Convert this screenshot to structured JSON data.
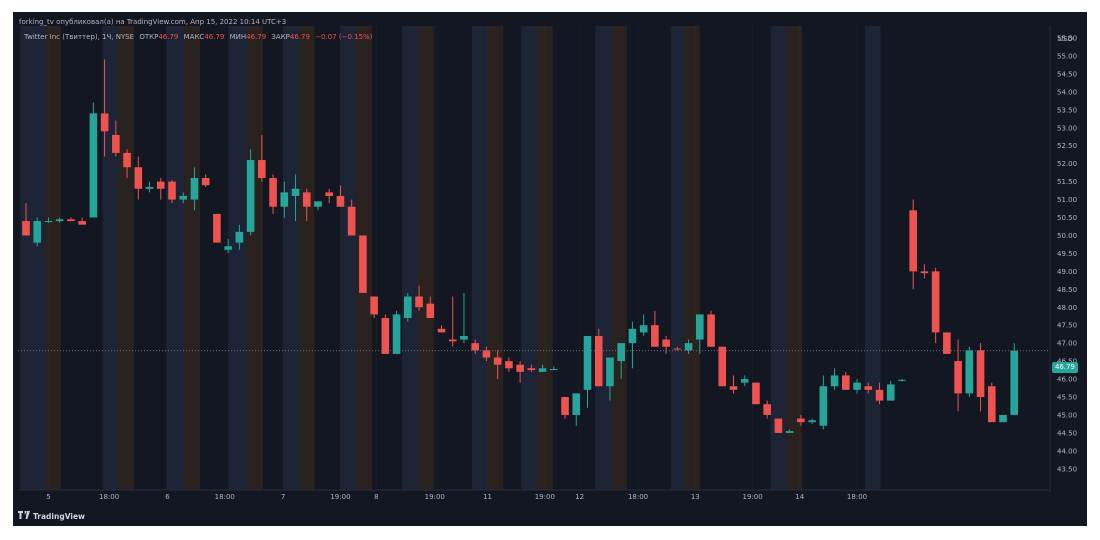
{
  "header": {
    "publish_line": "forking_tv опубликовал(а) на TradingView.com, Апр 15, 2022 10:14 UTC+3"
  },
  "symbol_bar": {
    "symbol": "Twitter Inc (Твиттер), 1Ч, NYSE",
    "open_label": "ОТКР",
    "open_value": "46.79",
    "high_label": "МАКС",
    "high_value": "46.79",
    "low_label": "МИН",
    "low_value": "46.79",
    "close_label": "ЗАКР",
    "close_value": "46.79",
    "change": "−0.07 (−0.15%)"
  },
  "footer": {
    "brand": "TradingView"
  },
  "colors": {
    "background": "#131722",
    "up": "#26a69a",
    "down": "#ef5350",
    "premarket_band": "#1c2436",
    "afterhours_band": "#2a221f",
    "text": "#b2b5be"
  },
  "chart_data": {
    "type": "candlestick",
    "currency": "USD",
    "last_price": "46.79",
    "y_ticks": [
      "43.50",
      "44.00",
      "44.50",
      "45.00",
      "45.50",
      "46.00",
      "46.50",
      "47.00",
      "47.50",
      "48.00",
      "48.50",
      "49.00",
      "49.50",
      "50.00",
      "50.50",
      "51.00",
      "51.50",
      "52.00",
      "52.50",
      "53.00",
      "53.50",
      "54.00",
      "54.50",
      "55.00",
      "55.50"
    ],
    "ylim": [
      43.25,
      56.0
    ],
    "x_ticks": [
      {
        "label": "5",
        "index": 2.0
      },
      {
        "label": "18:00",
        "index": 7.4
      },
      {
        "label": "6",
        "index": 12.6
      },
      {
        "label": "18:00",
        "index": 17.7
      },
      {
        "label": "7",
        "index": 22.9
      },
      {
        "label": "19:00",
        "index": 28.0
      },
      {
        "label": "8",
        "index": 31.2
      },
      {
        "label": "19:00",
        "index": 36.4
      },
      {
        "label": "11",
        "index": 41.1
      },
      {
        "label": "19:00",
        "index": 46.2
      },
      {
        "label": "12",
        "index": 49.3
      },
      {
        "label": "18:00",
        "index": 54.5
      },
      {
        "label": "13",
        "index": 59.6
      },
      {
        "label": "19:00",
        "index": 64.7
      },
      {
        "label": "14",
        "index": 68.9
      },
      {
        "label": "18:00",
        "index": 74.0
      }
    ],
    "session_bands": [
      {
        "kind": "pre",
        "start": 0.0,
        "end": 2.2
      },
      {
        "kind": "post",
        "start": 2.2,
        "end": 3.6
      },
      {
        "kind": "pre",
        "start": 7.3,
        "end": 8.7
      },
      {
        "kind": "post",
        "start": 8.7,
        "end": 10.1
      },
      {
        "kind": "pre",
        "start": 13.0,
        "end": 14.6
      },
      {
        "kind": "post",
        "start": 14.6,
        "end": 16.0
      },
      {
        "kind": "pre",
        "start": 18.5,
        "end": 20.2
      },
      {
        "kind": "post",
        "start": 20.2,
        "end": 21.6
      },
      {
        "kind": "pre",
        "start": 23.4,
        "end": 24.8
      },
      {
        "kind": "post",
        "start": 24.8,
        "end": 26.2
      },
      {
        "kind": "pre",
        "start": 28.5,
        "end": 29.9
      },
      {
        "kind": "post",
        "start": 29.9,
        "end": 31.3
      },
      {
        "kind": "pre",
        "start": 34.0,
        "end": 35.4
      },
      {
        "kind": "post",
        "start": 35.4,
        "end": 36.8
      },
      {
        "kind": "pre",
        "start": 40.2,
        "end": 41.6
      },
      {
        "kind": "post",
        "start": 41.6,
        "end": 43.0
      },
      {
        "kind": "pre",
        "start": 44.6,
        "end": 46.0
      },
      {
        "kind": "post",
        "start": 46.0,
        "end": 47.4
      },
      {
        "kind": "pre",
        "start": 51.2,
        "end": 52.6
      },
      {
        "kind": "post",
        "start": 52.6,
        "end": 54.0
      },
      {
        "kind": "pre",
        "start": 57.9,
        "end": 59.1
      },
      {
        "kind": "post",
        "start": 59.1,
        "end": 60.5
      },
      {
        "kind": "pre",
        "start": 66.8,
        "end": 68.2
      },
      {
        "kind": "post",
        "start": 68.2,
        "end": 69.6
      },
      {
        "kind": "pre",
        "start": 75.2,
        "end": 76.6
      }
    ],
    "candles": [
      {
        "o": 50.4,
        "h": 50.9,
        "l": 50.0,
        "c": 50.0
      },
      {
        "o": 49.8,
        "h": 50.5,
        "l": 49.7,
        "c": 50.4
      },
      {
        "o": 50.4,
        "h": 50.5,
        "l": 50.35,
        "c": 50.4
      },
      {
        "o": 50.4,
        "h": 50.5,
        "l": 50.35,
        "c": 50.45
      },
      {
        "o": 50.45,
        "h": 50.5,
        "l": 50.4,
        "c": 50.4
      },
      {
        "o": 50.4,
        "h": 50.5,
        "l": 50.3,
        "c": 50.3
      },
      {
        "o": 50.5,
        "h": 53.7,
        "l": 50.5,
        "c": 53.4
      },
      {
        "o": 53.4,
        "h": 54.9,
        "l": 52.2,
        "c": 52.9
      },
      {
        "o": 52.8,
        "h": 53.2,
        "l": 52.2,
        "c": 52.3
      },
      {
        "o": 52.3,
        "h": 52.4,
        "l": 51.6,
        "c": 51.9
      },
      {
        "o": 51.9,
        "h": 52.2,
        "l": 51.0,
        "c": 51.3
      },
      {
        "o": 51.3,
        "h": 51.5,
        "l": 51.2,
        "c": 51.35
      },
      {
        "o": 51.5,
        "h": 51.6,
        "l": 51.0,
        "c": 51.3
      },
      {
        "o": 51.5,
        "h": 51.55,
        "l": 50.9,
        "c": 51.0
      },
      {
        "o": 51.0,
        "h": 51.2,
        "l": 50.9,
        "c": 51.1
      },
      {
        "o": 51.0,
        "h": 51.9,
        "l": 50.7,
        "c": 51.6
      },
      {
        "o": 51.6,
        "h": 51.7,
        "l": 51.35,
        "c": 51.4
      },
      {
        "o": 50.6,
        "h": 50.6,
        "l": 49.8,
        "c": 49.8
      },
      {
        "o": 49.6,
        "h": 49.9,
        "l": 49.5,
        "c": 49.7
      },
      {
        "o": 49.8,
        "h": 50.3,
        "l": 49.6,
        "c": 50.1
      },
      {
        "o": 50.1,
        "h": 52.4,
        "l": 50.0,
        "c": 52.1
      },
      {
        "o": 52.1,
        "h": 52.8,
        "l": 51.5,
        "c": 51.6
      },
      {
        "o": 51.6,
        "h": 51.7,
        "l": 50.6,
        "c": 50.8
      },
      {
        "o": 50.8,
        "h": 51.5,
        "l": 50.5,
        "c": 51.2
      },
      {
        "o": 51.1,
        "h": 51.7,
        "l": 50.4,
        "c": 51.3
      },
      {
        "o": 51.2,
        "h": 51.3,
        "l": 50.4,
        "c": 50.8
      },
      {
        "o": 50.8,
        "h": 50.9,
        "l": 50.7,
        "c": 50.95
      },
      {
        "o": 51.2,
        "h": 51.3,
        "l": 50.9,
        "c": 51.1
      },
      {
        "o": 51.1,
        "h": 51.4,
        "l": 50.8,
        "c": 50.8
      },
      {
        "o": 50.8,
        "h": 51.0,
        "l": 50.0,
        "c": 50.0
      },
      {
        "o": 50.0,
        "h": 50.0,
        "l": 48.4,
        "c": 48.4
      },
      {
        "o": 48.3,
        "h": 48.3,
        "l": 47.7,
        "c": 47.8
      },
      {
        "o": 47.7,
        "h": 47.8,
        "l": 46.7,
        "c": 46.7
      },
      {
        "o": 46.7,
        "h": 47.9,
        "l": 46.7,
        "c": 47.8
      },
      {
        "o": 47.7,
        "h": 48.4,
        "l": 47.6,
        "c": 48.3
      },
      {
        "o": 48.3,
        "h": 48.6,
        "l": 47.9,
        "c": 48.0
      },
      {
        "o": 48.1,
        "h": 48.3,
        "l": 47.7,
        "c": 47.7
      },
      {
        "o": 47.4,
        "h": 47.5,
        "l": 47.3,
        "c": 47.3
      },
      {
        "o": 47.1,
        "h": 48.3,
        "l": 46.9,
        "c": 47.05
      },
      {
        "o": 47.1,
        "h": 48.4,
        "l": 47.0,
        "c": 47.2
      },
      {
        "o": 47.0,
        "h": 47.1,
        "l": 46.7,
        "c": 46.8
      },
      {
        "o": 46.8,
        "h": 46.9,
        "l": 46.5,
        "c": 46.6
      },
      {
        "o": 46.6,
        "h": 46.8,
        "l": 46.0,
        "c": 46.4
      },
      {
        "o": 46.5,
        "h": 46.6,
        "l": 46.2,
        "c": 46.3
      },
      {
        "o": 46.4,
        "h": 46.5,
        "l": 45.9,
        "c": 46.2
      },
      {
        "o": 46.3,
        "h": 46.4,
        "l": 46.2,
        "c": 46.25
      },
      {
        "o": 46.2,
        "h": 46.4,
        "l": 46.2,
        "c": 46.3
      },
      {
        "o": 46.25,
        "h": 46.35,
        "l": 46.25,
        "c": 46.28
      },
      {
        "o": 45.5,
        "h": 45.5,
        "l": 44.9,
        "c": 45.0
      },
      {
        "o": 45.0,
        "h": 45.6,
        "l": 44.7,
        "c": 45.6
      },
      {
        "o": 45.7,
        "h": 47.2,
        "l": 45.2,
        "c": 47.2
      },
      {
        "o": 47.2,
        "h": 47.4,
        "l": 45.8,
        "c": 45.8
      },
      {
        "o": 45.8,
        "h": 46.6,
        "l": 45.4,
        "c": 46.6
      },
      {
        "o": 46.5,
        "h": 47.0,
        "l": 46.0,
        "c": 47.0
      },
      {
        "o": 47.0,
        "h": 47.6,
        "l": 46.3,
        "c": 47.4
      },
      {
        "o": 47.3,
        "h": 47.8,
        "l": 47.2,
        "c": 47.5
      },
      {
        "o": 47.5,
        "h": 47.9,
        "l": 46.9,
        "c": 46.9
      },
      {
        "o": 47.1,
        "h": 47.2,
        "l": 46.7,
        "c": 46.9
      },
      {
        "o": 46.85,
        "h": 46.9,
        "l": 46.8,
        "c": 46.83
      },
      {
        "o": 46.8,
        "h": 47.1,
        "l": 46.7,
        "c": 47.0
      },
      {
        "o": 47.1,
        "h": 47.8,
        "l": 46.7,
        "c": 47.8
      },
      {
        "o": 47.8,
        "h": 47.9,
        "l": 46.9,
        "c": 46.9
      },
      {
        "o": 46.9,
        "h": 46.9,
        "l": 45.8,
        "c": 45.8
      },
      {
        "o": 45.8,
        "h": 46.1,
        "l": 45.6,
        "c": 45.7
      },
      {
        "o": 45.9,
        "h": 46.1,
        "l": 45.8,
        "c": 46.0
      },
      {
        "o": 45.9,
        "h": 45.9,
        "l": 45.3,
        "c": 45.3
      },
      {
        "o": 45.3,
        "h": 45.4,
        "l": 44.9,
        "c": 45.0
      },
      {
        "o": 44.9,
        "h": 44.9,
        "l": 44.5,
        "c": 44.5
      },
      {
        "o": 44.5,
        "h": 44.6,
        "l": 44.5,
        "c": 44.55
      },
      {
        "o": 44.9,
        "h": 45.0,
        "l": 44.7,
        "c": 44.8
      },
      {
        "o": 44.8,
        "h": 44.9,
        "l": 44.75,
        "c": 44.85
      },
      {
        "o": 44.7,
        "h": 46.1,
        "l": 44.6,
        "c": 45.8
      },
      {
        "o": 45.8,
        "h": 46.3,
        "l": 45.7,
        "c": 46.1
      },
      {
        "o": 46.1,
        "h": 46.2,
        "l": 45.7,
        "c": 45.7
      },
      {
        "o": 45.7,
        "h": 46.0,
        "l": 45.6,
        "c": 45.9
      },
      {
        "o": 45.8,
        "h": 45.9,
        "l": 45.6,
        "c": 45.7
      },
      {
        "o": 45.7,
        "h": 45.9,
        "l": 45.3,
        "c": 45.4
      },
      {
        "o": 45.4,
        "h": 45.95,
        "l": 45.4,
        "c": 45.85
      },
      {
        "o": 45.95,
        "h": 46.0,
        "l": 45.93,
        "c": 45.98
      },
      {
        "o": 50.7,
        "h": 51.0,
        "l": 48.5,
        "c": 49.0
      },
      {
        "o": 49.0,
        "h": 49.2,
        "l": 48.8,
        "c": 48.95
      },
      {
        "o": 49.0,
        "h": 49.1,
        "l": 47.0,
        "c": 47.3
      },
      {
        "o": 47.3,
        "h": 47.3,
        "l": 46.7,
        "c": 46.7
      },
      {
        "o": 46.5,
        "h": 47.1,
        "l": 45.1,
        "c": 45.6
      },
      {
        "o": 45.6,
        "h": 46.9,
        "l": 45.5,
        "c": 46.8
      },
      {
        "o": 46.8,
        "h": 47.0,
        "l": 45.1,
        "c": 45.5
      },
      {
        "o": 45.8,
        "h": 45.9,
        "l": 44.8,
        "c": 44.8
      },
      {
        "o": 44.8,
        "h": 45.0,
        "l": 44.8,
        "c": 45.0
      },
      {
        "o": 45.0,
        "h": 47.0,
        "l": 45.0,
        "c": 46.79
      }
    ]
  }
}
